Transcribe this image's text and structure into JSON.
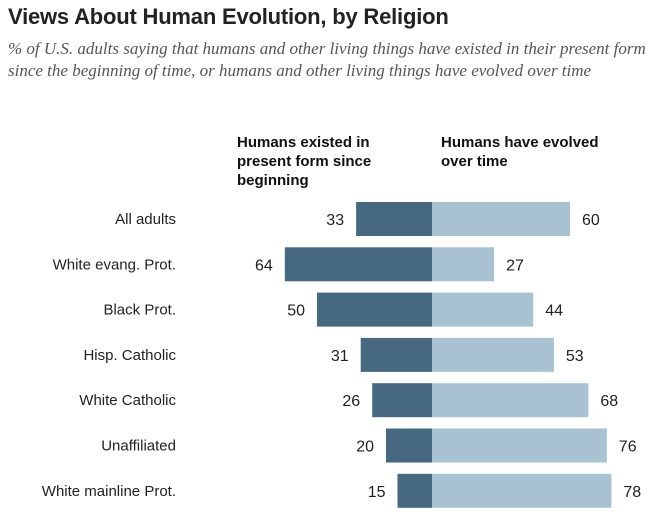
{
  "chart_data": {
    "type": "bar",
    "orientation": "diverging-horizontal",
    "title": "Views About Human Evolution, by Religion",
    "subtitle": "% of U.S. adults saying that humans and other living things have existed in their present form since the beginning of time, or humans and other living things have evolved over time",
    "categories": [
      "All adults",
      "White evang. Prot.",
      "Black Prot.",
      "Hisp. Catholic",
      "White Catholic",
      "Unaffiliated",
      "White mainline Prot."
    ],
    "series": [
      {
        "name": "Humans existed in present form since beginning",
        "values": [
          33,
          64,
          50,
          31,
          26,
          20,
          15
        ],
        "color": "#46697f"
      },
      {
        "name": "Humans have evolved over time",
        "values": [
          60,
          27,
          44,
          53,
          68,
          76,
          78
        ],
        "color": "#a9c2d2"
      }
    ],
    "grid": false
  }
}
